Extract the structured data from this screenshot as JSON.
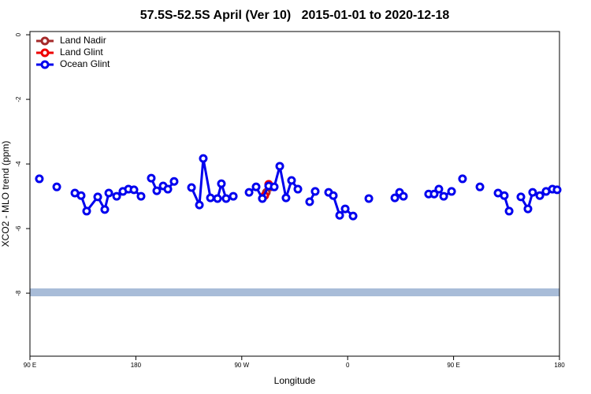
{
  "chart_data": {
    "type": "line",
    "title": "57.5S-52.5S April (Ver 10)   2015-01-01 to 2020-12-18",
    "x_label": "Longitude",
    "y_label": "XCO2 - MLO trend (ppm)",
    "xlim": [
      90,
      540
    ],
    "xticks": [
      {
        "value": 90,
        "label": "90 E"
      },
      180,
      {
        "value": 270,
        "label": "90 W"
      },
      {
        "value": 360,
        "label": "0"
      },
      {
        "value": 450,
        "label": "90 E"
      },
      {
        "value": 540,
        "label": "180"
      }
    ],
    "ylim": [
      -9.95,
      0.1
    ],
    "yticks": [
      0,
      -2,
      -4,
      -6,
      -8
    ],
    "legend": "top-left",
    "series": [
      {
        "name": "Land Nadir",
        "color": "#a52a2a",
        "x": [
          290.9,
          294.2
        ],
        "values": [
          -4.88,
          -4.71
        ]
      },
      {
        "name": "Land Glint",
        "color": "#ee0000",
        "x": [
          289.5,
          292.9
        ],
        "values": [
          -4.98,
          -4.63
        ]
      },
      {
        "name": "Ocean Glint",
        "color": "#0000ee",
        "x": [
          98.0,
          null,
          112.8,
          null,
          128.2,
          133.5,
          138.2,
          147.6,
          153.6,
          157.0,
          163.7,
          169.0,
          173.7,
          178.4,
          184.4,
          null,
          193.1,
          197.8,
          203.2,
          207.2,
          212.5,
          null,
          227.3,
          234.0,
          237.3,
          243.4,
          249.4,
          252.7,
          256.7,
          262.8,
          null,
          276.2,
          282.2,
          287.5,
          292.9,
          297.6,
          302.3,
          307.6,
          312.3,
          317.7,
          null,
          327.7,
          332.4,
          null,
          343.8,
          347.8,
          353.2,
          357.9,
          364.6,
          null,
          378.0,
          null,
          400.1,
          404.1,
          407.4,
          null,
          428.8,
          433.5,
          437.5,
          441.6,
          448.3,
          null,
          457.6,
          null,
          472.4,
          null,
          487.8,
          493.1,
          497.2,
          null,
          507.2,
          513.2,
          517.2,
          523.3,
          528.6,
          534.0,
          538.0
        ],
        "values": [
          -4.46,
          null,
          -4.71,
          null,
          -4.9,
          -4.98,
          -5.46,
          -5.02,
          -5.41,
          -4.9,
          -5.0,
          -4.85,
          -4.78,
          -4.8,
          -5.0,
          null,
          -4.44,
          -4.83,
          -4.68,
          -4.78,
          -4.54,
          null,
          -4.73,
          -5.27,
          -3.83,
          -5.05,
          -5.07,
          -4.61,
          -5.07,
          -5.0,
          null,
          -4.88,
          -4.71,
          -5.07,
          -4.68,
          -4.71,
          -4.07,
          -5.05,
          -4.51,
          -4.78,
          null,
          -5.17,
          -4.85,
          null,
          -4.88,
          -4.98,
          -5.59,
          -5.39,
          -5.61,
          null,
          -5.07,
          null,
          -5.05,
          -4.88,
          -5.0,
          null,
          -4.93,
          -4.93,
          -4.78,
          -5.0,
          -4.85,
          null,
          -4.46,
          null,
          -4.71,
          null,
          -4.9,
          -4.98,
          -5.46,
          null,
          -5.02,
          -5.39,
          -4.88,
          -4.98,
          -4.85,
          -4.78,
          -4.8
        ]
      }
    ]
  }
}
